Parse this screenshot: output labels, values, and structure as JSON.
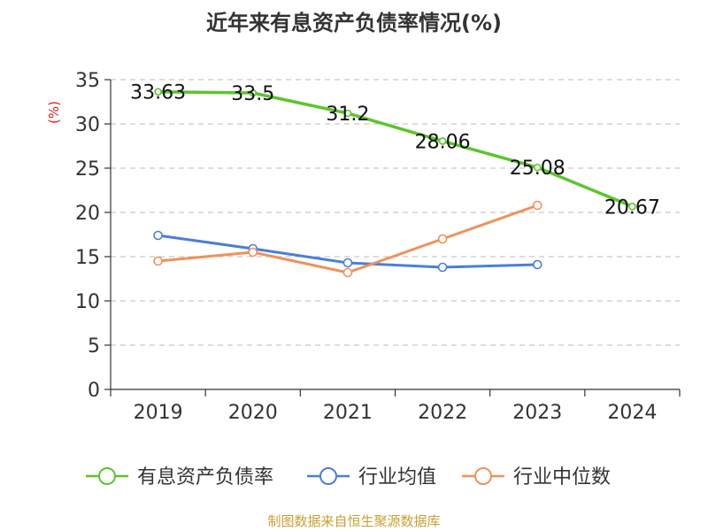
{
  "chart_data": {
    "type": "line",
    "title": "近年来有息资产负债率情况(%)",
    "ylabel": "(%)",
    "xlabel": "",
    "categories": [
      "2019",
      "2020",
      "2021",
      "2022",
      "2023",
      "2024"
    ],
    "ylim": [
      0,
      35
    ],
    "yticks": [
      0,
      5,
      10,
      15,
      20,
      25,
      30,
      35
    ],
    "grid": true,
    "legend_position": "bottom",
    "series": [
      {
        "name": "有息资产负债率",
        "color": "#5cc52a",
        "values": [
          33.63,
          33.5,
          31.2,
          28.06,
          25.08,
          20.67
        ],
        "labels": [
          "33.63",
          "33.5",
          "31.2",
          "28.06",
          "25.08",
          "20.67"
        ],
        "show_labels": true
      },
      {
        "name": "行业均值",
        "color": "#4a7fd8",
        "values": [
          17.4,
          15.9,
          14.3,
          13.8,
          14.1,
          null
        ],
        "show_labels": false
      },
      {
        "name": "行业中位数",
        "color": "#f0915a",
        "values": [
          14.5,
          15.5,
          13.2,
          17.0,
          20.8,
          null
        ],
        "show_labels": false
      }
    ]
  },
  "footer": {
    "source": "制图数据来自恒生聚源数据库"
  }
}
